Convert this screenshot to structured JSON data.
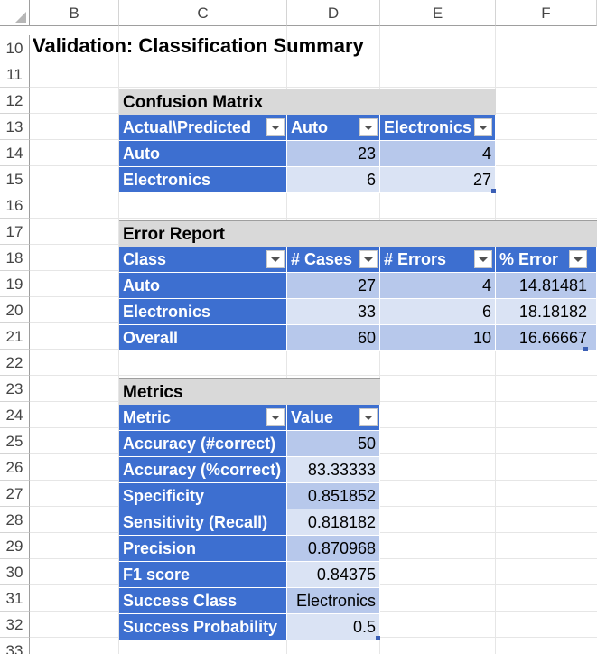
{
  "sheet": {
    "columns": [
      "B",
      "C",
      "D",
      "E",
      "F"
    ],
    "rows": [
      "10",
      "11",
      "12",
      "13",
      "14",
      "15",
      "16",
      "17",
      "18",
      "19",
      "20",
      "21",
      "22",
      "23",
      "24",
      "25",
      "26",
      "27",
      "28",
      "29",
      "30",
      "31",
      "32",
      "33"
    ]
  },
  "title": "Validation: Classification Summary",
  "confusion": {
    "title": "Confusion Matrix",
    "headers": [
      "Actual\\Predicted",
      "Auto",
      "Electronics"
    ],
    "rows": [
      {
        "label": "Auto",
        "values": [
          "23",
          "4"
        ]
      },
      {
        "label": "Electronics",
        "values": [
          "6",
          "27"
        ]
      }
    ]
  },
  "errors": {
    "title": "Error Report",
    "headers": [
      "Class",
      "# Cases",
      "# Errors",
      "% Error"
    ],
    "rows": [
      {
        "label": "Auto",
        "values": [
          "27",
          "4",
          "14.81481"
        ]
      },
      {
        "label": "Electronics",
        "values": [
          "33",
          "6",
          "18.18182"
        ]
      },
      {
        "label": "Overall",
        "values": [
          "60",
          "10",
          "16.66667"
        ]
      }
    ]
  },
  "metrics": {
    "title": "Metrics",
    "headers": [
      "Metric",
      "Value"
    ],
    "rows": [
      {
        "label": "Accuracy (#correct)",
        "value": "50"
      },
      {
        "label": "Accuracy (%correct)",
        "value": "83.33333"
      },
      {
        "label": "Specificity",
        "value": "0.851852"
      },
      {
        "label": "Sensitivity (Recall)",
        "value": "0.818182"
      },
      {
        "label": "Precision",
        "value": "0.870968"
      },
      {
        "label": "F1 score",
        "value": "0.84375"
      },
      {
        "label": "Success Class",
        "value": "Electronics"
      },
      {
        "label": "Success Probability",
        "value": "0.5"
      }
    ]
  },
  "colors": {
    "header_blue": "#3d6fd0",
    "band_dark": "#b7c8eb",
    "band_light": "#dae3f4",
    "title_gray": "#d9d9d9"
  }
}
